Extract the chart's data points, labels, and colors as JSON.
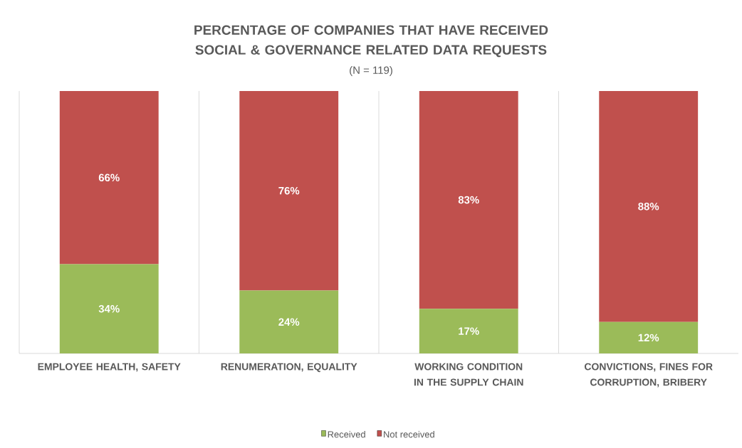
{
  "chart_data": {
    "type": "bar",
    "stacked": true,
    "title": "PERCENTAGE OF COMPANIES THAT HAVE RECEIVED SOCIAL & GOVERNANCE RELATED DATA REQUESTS",
    "subtitle": "(N = 119)",
    "categories": [
      "EMPLOYEE HEALTH, SAFETY",
      "RENUMERATION, EQUALITY",
      "WORKING CONDITION IN THE SUPPLY CHAIN",
      "CONVICTIONS, FINES FOR CORRUPTION, BRIBERY"
    ],
    "series": [
      {
        "name": "Received",
        "color": "#9bbb59",
        "values": [
          34,
          24,
          17,
          12
        ],
        "value_labels": [
          "34%",
          "24%",
          "17%",
          "12%"
        ]
      },
      {
        "name": "Not received",
        "color": "#c0504d",
        "values": [
          66,
          76,
          83,
          88
        ],
        "value_labels": [
          "66%",
          "76%",
          "83%",
          "88%"
        ]
      }
    ],
    "grid": "x",
    "legend": "bottom"
  }
}
